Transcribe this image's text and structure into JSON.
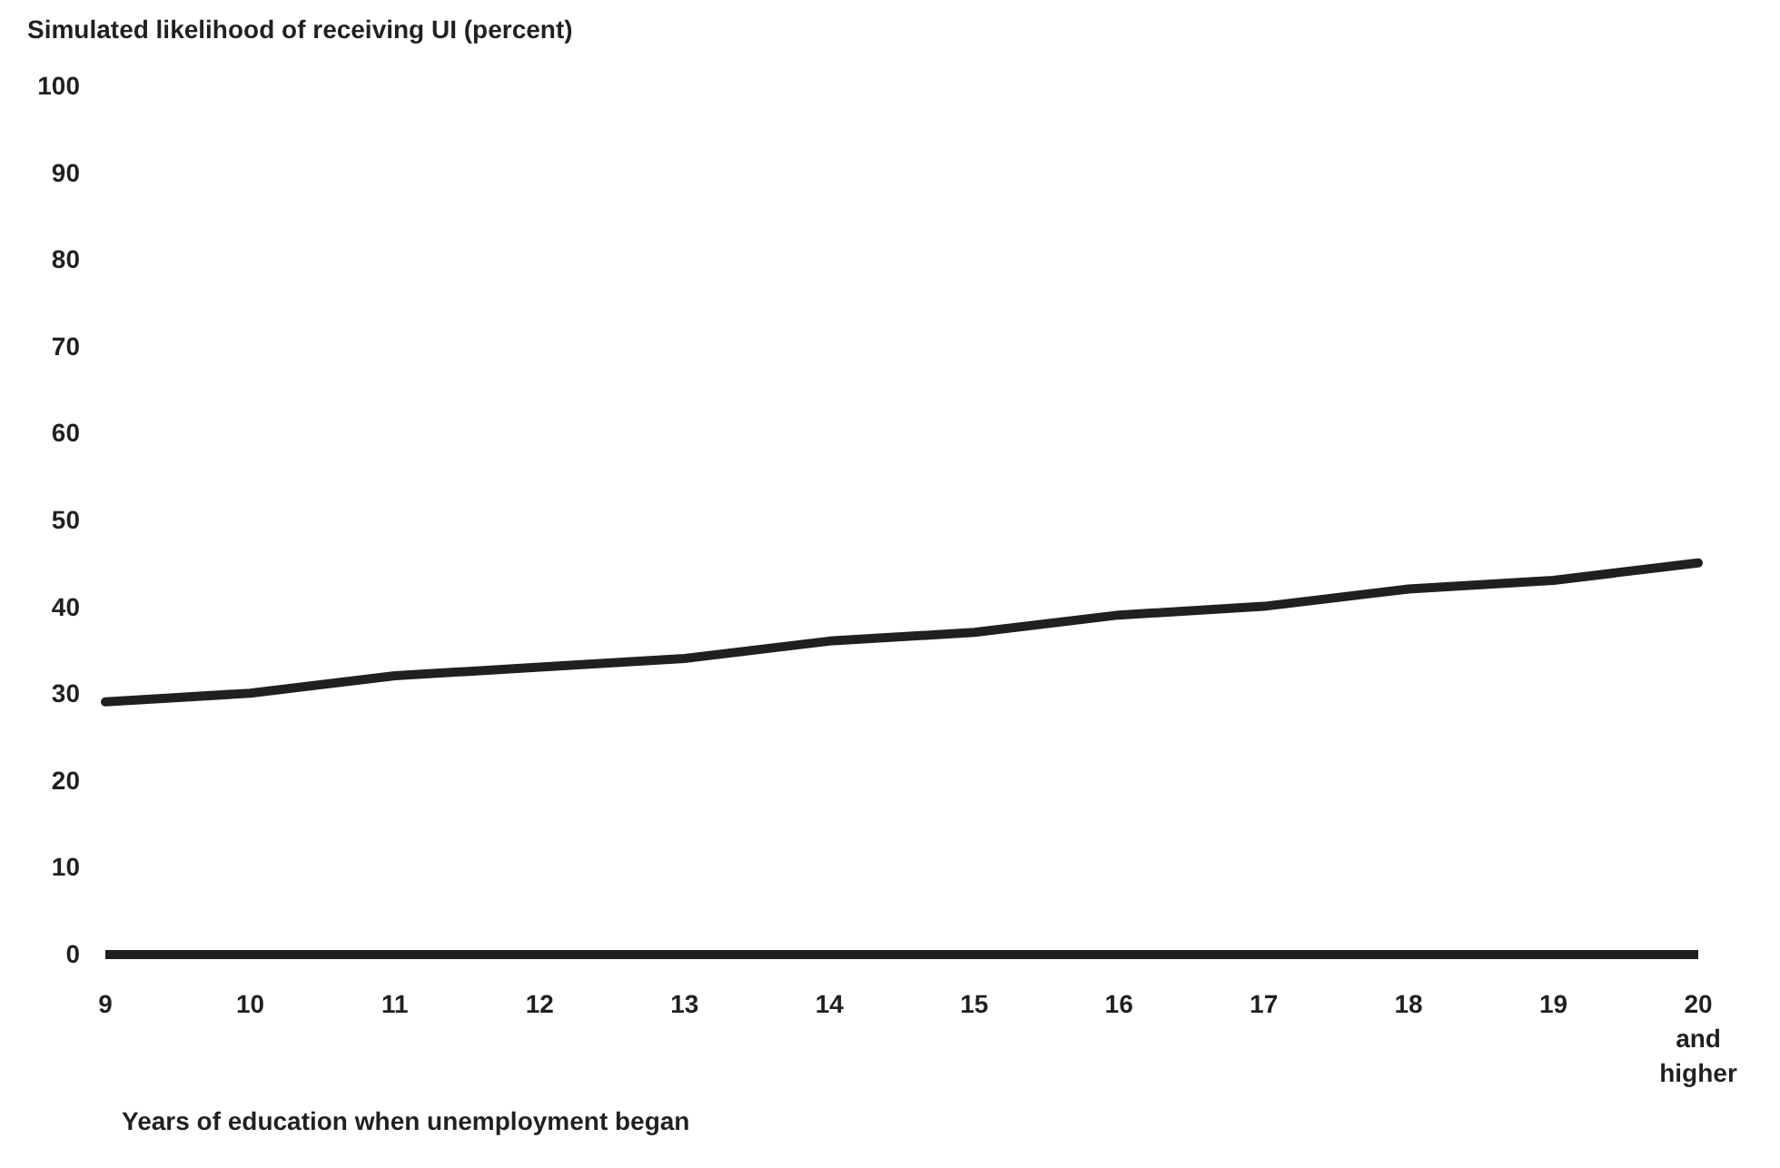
{
  "chart_data": {
    "type": "line",
    "ylabel": "Simulated likelihood of receiving UI (percent)",
    "xlabel": "Years of education when unemployment began",
    "categories": [
      "9",
      "10",
      "11",
      "12",
      "13",
      "14",
      "15",
      "16",
      "17",
      "18",
      "19",
      "20 and higher"
    ],
    "series": [
      {
        "color": "#231f20",
        "values": [
          29,
          30,
          32,
          33,
          34,
          36,
          37,
          39,
          40,
          42,
          43,
          45
        ]
      }
    ],
    "ylim": [
      0,
      100
    ],
    "yticks": [
      0,
      10,
      20,
      30,
      40,
      50,
      60,
      70,
      80,
      90,
      100
    ],
    "grid": false,
    "marker": "none",
    "line_style": "solid"
  }
}
